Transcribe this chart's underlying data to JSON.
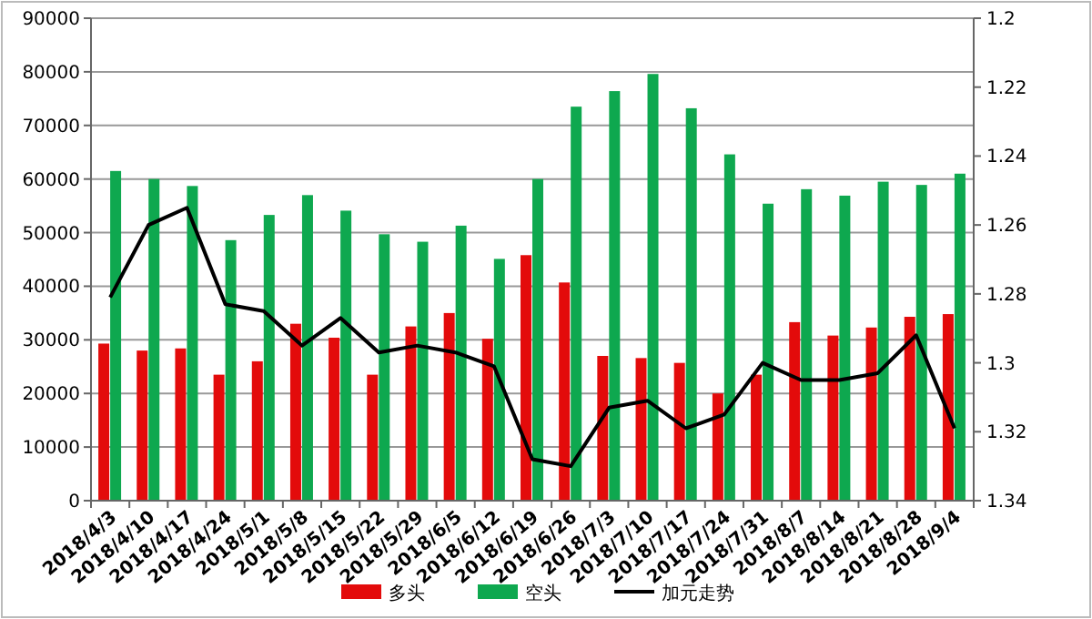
{
  "chart_data": {
    "type": "bar",
    "categories": [
      "2018/4/3",
      "2018/4/10",
      "2018/4/17",
      "2018/4/24",
      "2018/5/1",
      "2018/5/8",
      "2018/5/15",
      "2018/5/22",
      "2018/5/29",
      "2018/6/5",
      "2018/6/12",
      "2018/6/19",
      "2018/6/26",
      "2018/7/3",
      "2018/7/10",
      "2018/7/17",
      "2018/7/24",
      "2018/7/31",
      "2018/8/7",
      "2018/8/14",
      "2018/8/21",
      "2018/8/28",
      "2018/9/4"
    ],
    "series": [
      {
        "name": "多头",
        "color": "#e30b0b",
        "values": [
          29300,
          28000,
          28400,
          23500,
          26000,
          33000,
          30400,
          23500,
          32500,
          35000,
          30200,
          45800,
          40700,
          27000,
          26600,
          25700,
          20000,
          23500,
          33300,
          30800,
          32300,
          34300,
          34800
        ]
      },
      {
        "name": "空头",
        "color": "#0ea84f",
        "values": [
          61500,
          60000,
          58700,
          48600,
          53300,
          57000,
          54100,
          49700,
          48300,
          51300,
          45100,
          60000,
          73500,
          76400,
          79600,
          73200,
          64600,
          55400,
          58100,
          56900,
          59500,
          58900,
          61000
        ]
      },
      {
        "name": "加元走势",
        "color": "#000000",
        "type": "line",
        "axis": "y2",
        "values": [
          1.281,
          1.26,
          1.255,
          1.283,
          1.285,
          1.295,
          1.287,
          1.297,
          1.295,
          1.297,
          1.301,
          1.328,
          1.33,
          1.313,
          1.311,
          1.319,
          1.315,
          1.3,
          1.305,
          1.305,
          1.303,
          1.292,
          1.319
        ]
      }
    ],
    "ylim": [
      0,
      90000
    ],
    "yticks": [
      0,
      10000,
      20000,
      30000,
      40000,
      50000,
      60000,
      70000,
      80000,
      90000
    ],
    "y2lim": [
      1.34,
      1.2
    ],
    "y2ticks": [
      1.2,
      1.22,
      1.24,
      1.26,
      1.28,
      1.3,
      1.32,
      1.34
    ],
    "grid": "y",
    "legend": "bottom"
  }
}
